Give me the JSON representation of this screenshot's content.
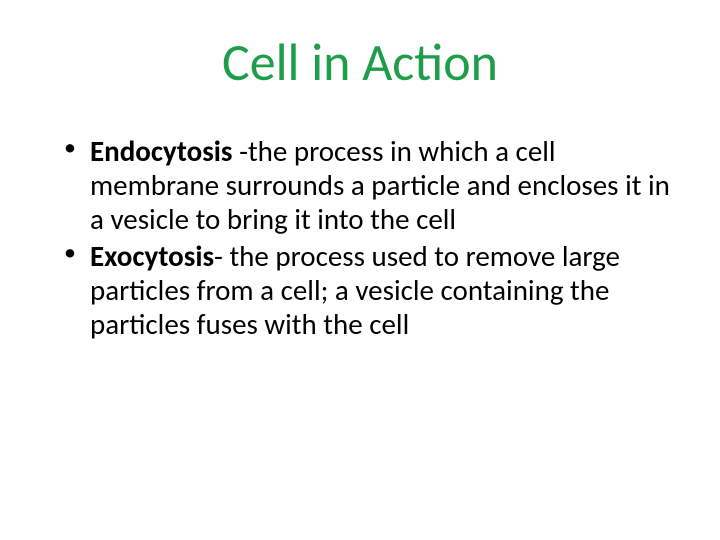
{
  "title": {
    "text": "Cell in Action",
    "color": "#1e9e4a",
    "fontsize": 52,
    "fontweight": 400
  },
  "body": {
    "fontsize": 29,
    "color": "#000000",
    "bullets": [
      {
        "term": "Endocytosis ",
        "definition": "-the process in which a cell membrane surrounds a particle and encloses it in a vesicle to bring it into the cell"
      },
      {
        "term": "Exocytosis",
        "definition": "- the process used to remove large particles from a cell; a vesicle containing the particles fuses with the cell"
      }
    ]
  },
  "background_color": "#ffffff"
}
